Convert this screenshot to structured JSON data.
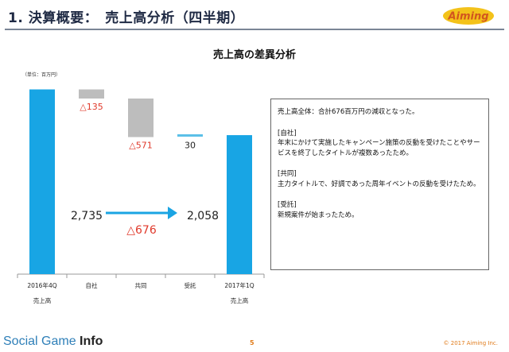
{
  "header": {
    "title": "1. 決算概要：　売上高分析（四半期）",
    "logo_text": "Aiming"
  },
  "chart_title": "売上高の差異分析",
  "unit_label": "（単位：百万円）",
  "chart_data": {
    "type": "bar",
    "subtype": "waterfall",
    "categories": [
      "2016年4Q",
      "自社",
      "共同",
      "受託",
      "2017年1Q"
    ],
    "sublabels": [
      "売上高",
      "",
      "",
      "",
      "売上高"
    ],
    "values": [
      2735,
      -135,
      -571,
      30,
      2058
    ],
    "data_labels": [
      "2,735",
      "△135",
      "△571",
      "30",
      "2,058"
    ],
    "annotation_change": "△676",
    "ylim": [
      0,
      2800
    ],
    "colors": {
      "total": "#18a5e4",
      "decrease": "#bdbdbd",
      "increase": "#5bc0e8",
      "negative_text": "#e0392b",
      "arrow": "#1aa4e3"
    }
  },
  "textbox": {
    "summary": "売上高全体：合計676百万円の減収となった。",
    "sections": [
      {
        "heading": "[自社]",
        "body": "年末にかけて実施したキャンペーン施策の反動を受けたことやサービスを終了したタイトルが複数あったため。"
      },
      {
        "heading": "[共同]",
        "body": "主力タイトルで、好調であった周年イベントの反動を受けたため。"
      },
      {
        "heading": "[受託]",
        "body": "新規案件が始まったため。"
      }
    ]
  },
  "footer": {
    "brand_light": "Social Game ",
    "brand_bold": "Info",
    "page_number": "5",
    "copyright": "© 2017 Aiming Inc."
  }
}
